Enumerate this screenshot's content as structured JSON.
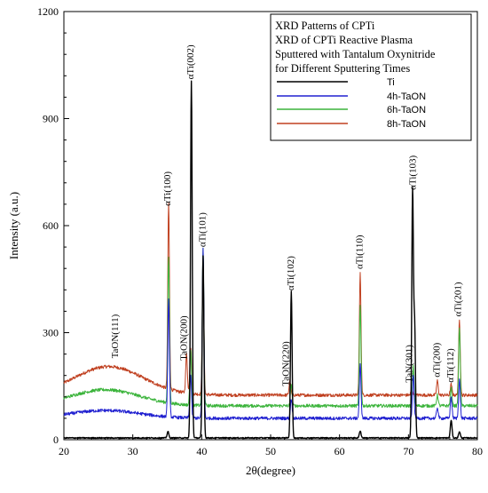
{
  "chart_data": {
    "type": "line",
    "title_lines": [
      "XRD Patterns of CPTi",
      "XRD of CPTi Reactive Plasma",
      "Sputtered with Tantalum Oxynitride",
      "for Different Sputtering Times"
    ],
    "xlabel": "2θ(degree)",
    "ylabel": "Intensity (a.u.)",
    "xlim": [
      20,
      80
    ],
    "ylim": [
      0,
      1200
    ],
    "x_ticks": [
      20,
      30,
      40,
      50,
      60,
      70,
      80
    ],
    "y_ticks": [
      0,
      300,
      600,
      900,
      1200
    ],
    "grid": false,
    "legend_position": "top-right",
    "series": [
      {
        "name": "Ti",
        "color": "#000000",
        "baseline": 5,
        "hump": null,
        "peaks": [
          [
            35.1,
            18
          ],
          [
            38.5,
            1000
          ],
          [
            40.2,
            510
          ],
          [
            53.0,
            410
          ],
          [
            63.0,
            20
          ],
          [
            70.6,
            690
          ],
          [
            70.9,
            310
          ],
          [
            76.2,
            50
          ],
          [
            77.4,
            18
          ]
        ]
      },
      {
        "name": "4h-TaON",
        "color": "#2020d0",
        "baseline": 60,
        "hump": {
          "center": 26,
          "width": 5,
          "height": 22
        },
        "peaks": [
          [
            35.2,
            330
          ],
          [
            38.4,
            120
          ],
          [
            40.2,
            480
          ],
          [
            53.0,
            55
          ],
          [
            63.0,
            150
          ],
          [
            70.7,
            120
          ],
          [
            74.2,
            30
          ],
          [
            76.2,
            60
          ],
          [
            77.4,
            110
          ]
        ]
      },
      {
        "name": "6h-TaON",
        "color": "#3cb43c",
        "baseline": 95,
        "hump": {
          "center": 26,
          "width": 5,
          "height": 45
        },
        "peaks": [
          [
            35.2,
            410
          ],
          [
            38.4,
            150
          ],
          [
            40.2,
            440
          ],
          [
            53.0,
            60
          ],
          [
            63.0,
            280
          ],
          [
            70.7,
            110
          ],
          [
            74.2,
            30
          ],
          [
            76.2,
            50
          ],
          [
            77.4,
            220
          ]
        ]
      },
      {
        "name": "8h-TaON",
        "color": "#c04020",
        "baseline": 125,
        "hump": {
          "center": 26.5,
          "width": 5,
          "height": 80
        },
        "peaks": [
          [
            35.2,
            520
          ],
          [
            37.8,
            110
          ],
          [
            38.4,
            130
          ],
          [
            40.2,
            370
          ],
          [
            52.8,
            40
          ],
          [
            63.0,
            340
          ],
          [
            70.5,
            20
          ],
          [
            74.2,
            40
          ],
          [
            76.2,
            30
          ],
          [
            77.4,
            210
          ]
        ]
      }
    ],
    "annotations": [
      {
        "text": "αTi(100)",
        "x": 35.1,
        "y": 655
      },
      {
        "text": "αTi(002)",
        "x": 38.5,
        "y": 1010
      },
      {
        "text": "αTi(101)",
        "x": 40.2,
        "y": 540
      },
      {
        "text": "αTi(102)",
        "x": 53.0,
        "y": 418
      },
      {
        "text": "αTi(110)",
        "x": 63.0,
        "y": 478
      },
      {
        "text": "αTi(103)",
        "x": 70.7,
        "y": 700
      },
      {
        "text": "αTi(200)",
        "x": 74.2,
        "y": 175
      },
      {
        "text": "αTi(112)",
        "x": 76.2,
        "y": 160
      },
      {
        "text": "αTi(201)",
        "x": 77.3,
        "y": 345
      },
      {
        "text": "TaON(111)",
        "x": 27.5,
        "y": 228
      },
      {
        "text": "TaON(200)",
        "x": 37.5,
        "y": 222
      },
      {
        "text": "TaON(220)",
        "x": 52.3,
        "y": 150
      },
      {
        "text": "TaN(301)",
        "x": 70.2,
        "y": 160
      }
    ]
  }
}
